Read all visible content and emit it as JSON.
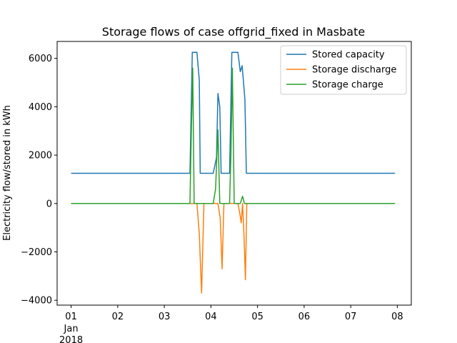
{
  "chart_data": {
    "type": "line",
    "title": "Storage flows of case offgrid_fixed in Masbate",
    "xlabel": "",
    "ylabel": "Electricity flow/stored in kWh",
    "xlim": [
      -0.3,
      7.3
    ],
    "ylim": [
      -4200,
      6700
    ],
    "x_ticks": [
      {
        "value": 0,
        "label": "01",
        "sublabels": [
          "Jan",
          "2018"
        ]
      },
      {
        "value": 1,
        "label": "02"
      },
      {
        "value": 2,
        "label": "03"
      },
      {
        "value": 3,
        "label": "04"
      },
      {
        "value": 4,
        "label": "05"
      },
      {
        "value": 5,
        "label": "06"
      },
      {
        "value": 6,
        "label": "07"
      },
      {
        "value": 7,
        "label": "08"
      }
    ],
    "y_ticks": [
      {
        "value": -4000,
        "label": "−4000"
      },
      {
        "value": -2000,
        "label": "−2000"
      },
      {
        "value": 0,
        "label": "0"
      },
      {
        "value": 2000,
        "label": "2000"
      },
      {
        "value": 4000,
        "label": "4000"
      },
      {
        "value": 6000,
        "label": "6000"
      }
    ],
    "legend_position": "top-right",
    "grid": false,
    "series": [
      {
        "name": "Stored capacity",
        "color": "#1f77b4",
        "points": [
          [
            0,
            1250
          ],
          [
            2.55,
            1250
          ],
          [
            2.6,
            6250
          ],
          [
            2.7,
            6250
          ],
          [
            2.75,
            5100
          ],
          [
            2.77,
            1250
          ],
          [
            3.05,
            1250
          ],
          [
            3.12,
            1900
          ],
          [
            3.15,
            4550
          ],
          [
            3.19,
            4000
          ],
          [
            3.22,
            1250
          ],
          [
            3.4,
            1250
          ],
          [
            3.45,
            6250
          ],
          [
            3.58,
            6250
          ],
          [
            3.63,
            5450
          ],
          [
            3.67,
            5700
          ],
          [
            3.73,
            4300
          ],
          [
            3.76,
            1250
          ],
          [
            6.95,
            1250
          ]
        ]
      },
      {
        "name": "Storage discharge",
        "color": "#ff7f0e",
        "points": [
          [
            0,
            0
          ],
          [
            2.7,
            0
          ],
          [
            2.75,
            -1250
          ],
          [
            2.8,
            -3700
          ],
          [
            2.85,
            0
          ],
          [
            3.15,
            0
          ],
          [
            3.2,
            -600
          ],
          [
            3.24,
            -2700
          ],
          [
            3.28,
            0
          ],
          [
            3.58,
            0
          ],
          [
            3.62,
            -400
          ],
          [
            3.65,
            -800
          ],
          [
            3.68,
            0
          ],
          [
            3.71,
            -1300
          ],
          [
            3.74,
            -3150
          ],
          [
            3.77,
            0
          ],
          [
            6.95,
            0
          ]
        ]
      },
      {
        "name": "Storage charge",
        "color": "#2ca02c",
        "points": [
          [
            0,
            0
          ],
          [
            2.55,
            0
          ],
          [
            2.58,
            3000
          ],
          [
            2.61,
            5600
          ],
          [
            2.64,
            0
          ],
          [
            3.05,
            0
          ],
          [
            3.1,
            600
          ],
          [
            3.15,
            3050
          ],
          [
            3.19,
            0
          ],
          [
            3.4,
            0
          ],
          [
            3.43,
            2000
          ],
          [
            3.46,
            5600
          ],
          [
            3.5,
            0
          ],
          [
            3.63,
            0
          ],
          [
            3.68,
            300
          ],
          [
            3.72,
            0
          ],
          [
            6.95,
            0
          ]
        ]
      }
    ]
  }
}
